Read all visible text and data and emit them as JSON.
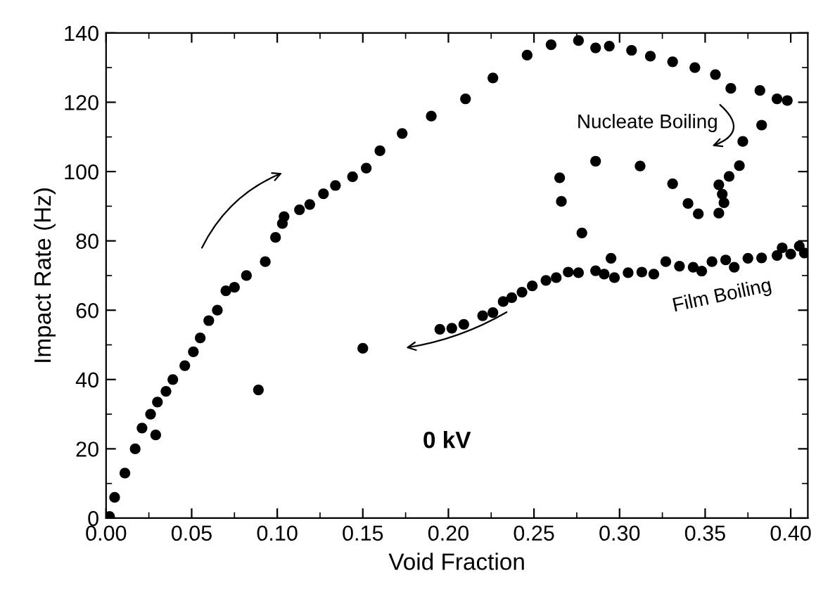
{
  "chart_data": {
    "type": "scatter",
    "xlabel": "Void Fraction",
    "ylabel": "Impact Rate (Hz)",
    "annotations": [
      "Nucleate Boiling",
      "Film Boiling",
      "0 kV"
    ],
    "x": [
      0.002,
      0.005,
      0.011,
      0.017,
      0.021,
      0.026,
      0.029,
      0.03,
      0.035,
      0.039,
      0.046,
      0.051,
      0.055,
      0.06,
      0.065,
      0.07,
      0.075,
      0.082,
      0.089,
      0.093,
      0.099,
      0.103,
      0.104,
      0.113,
      0.119,
      0.127,
      0.134,
      0.144,
      0.152,
      0.16,
      0.173,
      0.19,
      0.21,
      0.226,
      0.246,
      0.26,
      0.276,
      0.286,
      0.294,
      0.307,
      0.318,
      0.331,
      0.344,
      0.356,
      0.365,
      0.382,
      0.392,
      0.398,
      0.383,
      0.372,
      0.37,
      0.364,
      0.358,
      0.36,
      0.361,
      0.358,
      0.346,
      0.34,
      0.331,
      0.312,
      0.286,
      0.265,
      0.266,
      0.278,
      0.295,
      0.15,
      0.195,
      0.202,
      0.209,
      0.22,
      0.226,
      0.232,
      0.237,
      0.243,
      0.249,
      0.257,
      0.263,
      0.27,
      0.276,
      0.286,
      0.291,
      0.297,
      0.305,
      0.313,
      0.32,
      0.327,
      0.335,
      0.343,
      0.348,
      0.354,
      0.362,
      0.367,
      0.375,
      0.383,
      0.392,
      0.4,
      0.408,
      0.395,
      0.405
    ],
    "values": [
      0.5,
      6,
      13,
      20,
      26,
      30,
      24,
      33.5,
      36.6,
      40,
      44,
      48,
      52,
      57,
      60,
      65.6,
      66.6,
      70,
      37,
      74,
      81,
      85,
      87,
      89,
      90.5,
      93.6,
      96,
      98.5,
      101,
      106,
      111,
      116,
      121,
      127,
      133.6,
      136.6,
      137.8,
      135.7,
      136.2,
      135,
      133.3,
      131.7,
      130,
      128,
      124,
      123.4,
      121,
      120.5,
      113.4,
      108.7,
      101.7,
      98.6,
      96.2,
      93.5,
      91,
      88,
      87.8,
      90.8,
      96.5,
      101.6,
      103,
      98.2,
      91.4,
      82.3,
      75,
      49,
      54.5,
      54.8,
      55.9,
      58.4,
      59.3,
      62.5,
      63.6,
      65.2,
      67,
      68.6,
      69.4,
      71,
      70.8,
      71.4,
      70.4,
      69.4,
      70.8,
      71,
      70.4,
      74,
      72.7,
      72.4,
      71.3,
      74,
      74.5,
      72.4,
      75,
      75.1,
      75.8,
      76.2,
      76.5,
      78,
      78.5
    ],
    "color": "#000000",
    "marker": "circle",
    "xlim": [
      0,
      0.41
    ],
    "xticks": [
      {
        "value": 0,
        "label": "0.00"
      },
      {
        "value": 0.05,
        "label": "0.05"
      },
      {
        "value": 0.1,
        "label": "0.10"
      },
      {
        "value": 0.15,
        "label": "0.15"
      },
      {
        "value": 0.2,
        "label": "0.20"
      },
      {
        "value": 0.25,
        "label": "0.25"
      },
      {
        "value": 0.3,
        "label": "0.30"
      },
      {
        "value": 0.35,
        "label": "0.35"
      },
      {
        "value": 0.4,
        "label": "0.40"
      }
    ],
    "ylim": [
      0,
      140
    ],
    "yticks": [
      0,
      20,
      40,
      60,
      80,
      100,
      120,
      140
    ],
    "grid": false
  }
}
